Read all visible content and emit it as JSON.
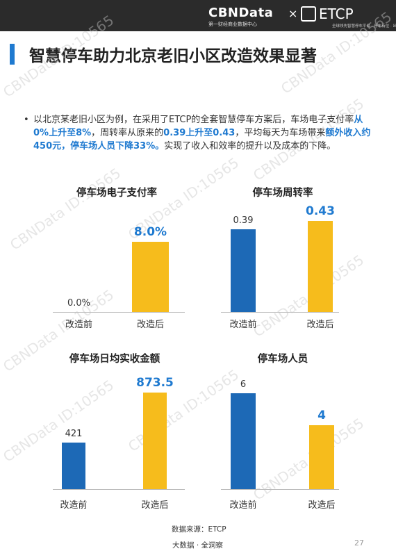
{
  "header": {
    "brand": "CBNData",
    "brand_tagline": "第一财经商业数据中心",
    "times": "×",
    "partner": "ETCP",
    "partner_sub": "全球领先智慧停车平台 · 停车有位 · 出行无忧"
  },
  "page_title": "智慧停车助力北京老旧小区改造效果显著",
  "watermark": "CBNData ID:10565",
  "summary": {
    "bullet": "•",
    "p1": "以北京某老旧小区为例，在采用了ETCP的全套智慧停车方案后，车场电子支付率",
    "h1": "从0%上升至8%",
    "p2": "，周转率从原来的",
    "h2": "0.39上升至0.43",
    "p3": "，平均每天为车场带来",
    "h3": "额外收入约450元，停车场人员下降33%。",
    "p4": "实现了收入和效率的提升以及成本的下降。"
  },
  "chart_data": [
    {
      "type": "bar",
      "title": "停车场电子支付率",
      "categories": [
        "改造前",
        "改造后"
      ],
      "values": [
        0.0,
        8.0
      ],
      "labels": [
        "0.0%",
        "8.0%"
      ],
      "ylim": [
        0,
        8.0
      ],
      "colors": [
        "#1d69b6",
        "#f6bc1c"
      ]
    },
    {
      "type": "bar",
      "title": "停车场周转率",
      "categories": [
        "改造前",
        "改造后"
      ],
      "values": [
        0.39,
        0.43
      ],
      "labels": [
        "0.39",
        "0.43"
      ],
      "ylim": [
        0,
        0.43
      ],
      "colors": [
        "#1d69b6",
        "#f6bc1c"
      ]
    },
    {
      "type": "bar",
      "title": "停车场日均实收金额",
      "categories": [
        "改造前",
        "改造后"
      ],
      "values": [
        421,
        873.5
      ],
      "labels": [
        "421",
        "873.5"
      ],
      "ylim": [
        0,
        873.5
      ],
      "colors": [
        "#1d69b6",
        "#f6bc1c"
      ]
    },
    {
      "type": "bar",
      "title": "停车场人员",
      "categories": [
        "改造前",
        "改造后"
      ],
      "values": [
        6,
        4
      ],
      "labels": [
        "6",
        "4"
      ],
      "ylim": [
        0,
        6
      ],
      "colors": [
        "#1d69b6",
        "#f6bc1c"
      ]
    }
  ],
  "footer": {
    "source": "数据来源：ETCP",
    "brand": "大数据 · 全洞察",
    "page_number": "27"
  }
}
